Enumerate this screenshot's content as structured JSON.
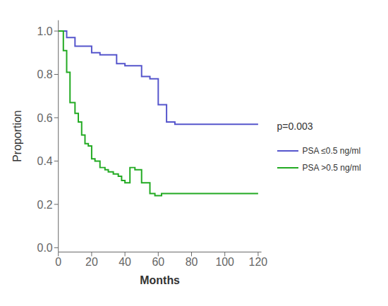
{
  "chart_data": {
    "type": "line",
    "xlabel": "Months",
    "ylabel": "Proportion",
    "annotation": "p=0.003",
    "legend": "right",
    "grid": false,
    "xlim": [
      0,
      122
    ],
    "ylim": [
      -0.02,
      1.05
    ],
    "xticks": [
      0,
      20,
      40,
      60,
      80,
      100,
      120
    ],
    "yticks": [
      {
        "value": 0.0,
        "label": "0.0"
      },
      {
        "value": 0.2,
        "label": "0.2"
      },
      {
        "value": 0.4,
        "label": "0.4"
      },
      {
        "value": 0.6,
        "label": "0.6"
      },
      {
        "value": 0.8,
        "label": "0.8"
      },
      {
        "value": 1.0,
        "label": "1.0"
      }
    ],
    "series": [
      {
        "name": "PSA ≤0.5 ng/ml",
        "color": "#5555cc",
        "x": [
          0,
          5,
          5,
          10,
          10,
          20,
          20,
          25,
          25,
          35,
          35,
          40,
          40,
          50,
          50,
          55,
          55,
          60,
          60,
          65,
          65,
          70,
          70,
          105,
          105,
          120
        ],
        "values": [
          1.0,
          1.0,
          0.97,
          0.97,
          0.93,
          0.93,
          0.9,
          0.9,
          0.89,
          0.89,
          0.85,
          0.85,
          0.84,
          0.84,
          0.79,
          0.79,
          0.78,
          0.78,
          0.66,
          0.66,
          0.58,
          0.58,
          0.57,
          0.57,
          0.57,
          0.57
        ]
      },
      {
        "name": "PSA >0.5 ng/ml",
        "color": "#22aa22",
        "x": [
          0,
          3,
          3,
          5,
          5,
          7,
          7,
          10,
          10,
          12,
          12,
          14,
          14,
          16,
          16,
          18,
          18,
          20,
          20,
          22,
          22,
          25,
          25,
          28,
          28,
          30,
          30,
          33,
          33,
          36,
          36,
          38,
          38,
          40,
          40,
          43,
          43,
          46,
          46,
          50,
          50,
          55,
          55,
          58,
          58,
          62,
          62,
          66,
          66,
          70,
          70,
          120
        ],
        "values": [
          1.0,
          1.0,
          0.91,
          0.91,
          0.81,
          0.81,
          0.67,
          0.67,
          0.62,
          0.62,
          0.58,
          0.58,
          0.52,
          0.52,
          0.48,
          0.48,
          0.47,
          0.47,
          0.41,
          0.41,
          0.4,
          0.4,
          0.37,
          0.37,
          0.36,
          0.36,
          0.35,
          0.35,
          0.34,
          0.34,
          0.33,
          0.33,
          0.31,
          0.31,
          0.3,
          0.3,
          0.37,
          0.37,
          0.36,
          0.36,
          0.3,
          0.3,
          0.25,
          0.25,
          0.24,
          0.24,
          0.25,
          0.25,
          0.25,
          0.25,
          0.25,
          0.25
        ]
      }
    ]
  }
}
